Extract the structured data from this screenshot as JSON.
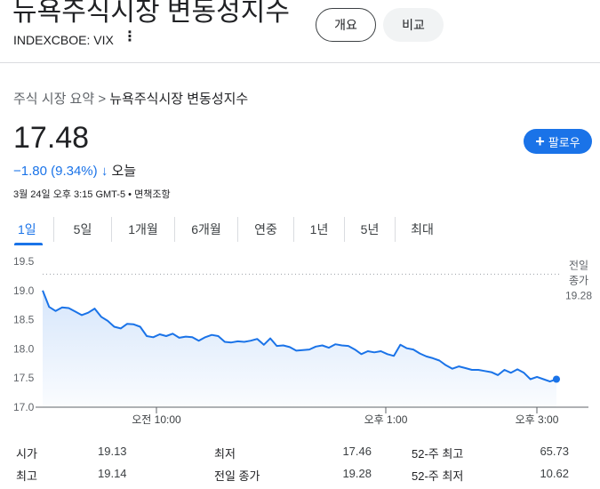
{
  "header": {
    "title": "뉴욕주식시장 변동성지수",
    "ticker": "INDEXCBOE: VIX",
    "more_icon": "more-vert-icon",
    "overview_label": "개요",
    "compare_label": "비교"
  },
  "breadcrumb": {
    "root": "주식 시장 요약",
    "separator": ">",
    "current": "뉴욕주식시장 변동성지수"
  },
  "quote": {
    "price": "17.48",
    "change": "−1.80 (9.34%)",
    "direction_icon": "arrow-down-icon",
    "period": "오늘",
    "timestamp": "3월 24일 오후 3:15 GMT-5",
    "bullet": "•",
    "disclaimer": "면책조항",
    "follow_label": "팔로우",
    "change_color": "#1a73e8"
  },
  "ranges": [
    {
      "label": "1일",
      "active": true
    },
    {
      "label": "5일"
    },
    {
      "label": "1개월"
    },
    {
      "label": "6개월"
    },
    {
      "label": "연중"
    },
    {
      "label": "1년"
    },
    {
      "label": "5년"
    },
    {
      "label": "최대"
    }
  ],
  "chart_data": {
    "type": "area",
    "y_ticks": [
      "19.5",
      "19.0",
      "18.5",
      "18.0",
      "17.5",
      "17.0"
    ],
    "ylim": [
      17.0,
      19.5
    ],
    "x_ticks": [
      "오전 10:00",
      "오후 1:00",
      "오후 3:00"
    ],
    "previous_close": {
      "label_line1": "전일",
      "label_line2": "종가",
      "value": 19.28,
      "value_label": "19.28"
    },
    "line_color": "#1a73e8",
    "grid": false,
    "values": [
      19.0,
      18.72,
      18.65,
      18.71,
      18.7,
      18.64,
      18.58,
      18.62,
      18.69,
      18.55,
      18.48,
      18.38,
      18.35,
      18.43,
      18.42,
      18.38,
      18.22,
      18.2,
      18.25,
      18.22,
      18.26,
      18.19,
      18.21,
      18.2,
      18.14,
      18.2,
      18.24,
      18.22,
      18.12,
      18.11,
      18.13,
      18.12,
      18.14,
      18.17,
      18.07,
      18.18,
      18.05,
      18.06,
      18.03,
      17.97,
      17.98,
      17.99,
      18.04,
      18.06,
      18.02,
      18.08,
      18.06,
      18.05,
      17.99,
      17.91,
      17.96,
      17.94,
      17.96,
      17.91,
      17.88,
      18.07,
      18.01,
      17.99,
      17.92,
      17.87,
      17.84,
      17.8,
      17.72,
      17.66,
      17.7,
      17.67,
      17.64,
      17.64,
      17.62,
      17.6,
      17.55,
      17.64,
      17.59,
      17.65,
      17.59,
      17.48,
      17.52,
      17.48,
      17.44,
      17.48
    ]
  },
  "stats": [
    {
      "l1": "시가",
      "v1": "19.13",
      "l2": "최저",
      "v2": "17.46",
      "l3": "52-주 최고",
      "v3": "65.73"
    },
    {
      "l1": "최고",
      "v1": "19.14",
      "l2": "전일 종가",
      "v2": "19.28",
      "l3": "52-주 최저",
      "v3": "10.62"
    }
  ]
}
